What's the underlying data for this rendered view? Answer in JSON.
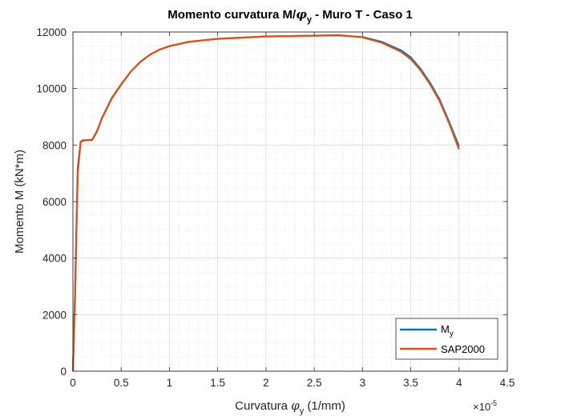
{
  "chart_data": {
    "type": "line",
    "title": {
      "prefix": "Momento curvatura M/",
      "phi": "φ",
      "sub": "y",
      "suffix": " - Muro T - Caso 1"
    },
    "xlabel": {
      "prefix": "Curvatura ",
      "phi": "φ",
      "sub": "y",
      "suffix": " (1/mm)"
    },
    "ylabel": "Momento M (kN*m)",
    "x_multiplier": {
      "base": "×10",
      "exponent": "-5"
    },
    "xlim": [
      0,
      4.5
    ],
    "ylim": [
      0,
      12000
    ],
    "x_ticks": [
      0,
      0.5,
      1,
      1.5,
      2,
      2.5,
      3,
      3.5,
      4,
      4.5
    ],
    "x_tick_labels": [
      "0",
      "0.5",
      "1",
      "1.5",
      "2",
      "2.5",
      "3",
      "3.5",
      "4",
      "4.5"
    ],
    "y_ticks": [
      0,
      2000,
      4000,
      6000,
      8000,
      10000,
      12000
    ],
    "y_tick_labels": [
      "0",
      "2000",
      "4000",
      "6000",
      "8000",
      "10000",
      "12000"
    ],
    "grid": true,
    "minor_grid": true,
    "legend_position": "bottom-right",
    "series": [
      {
        "name": "M",
        "name_sub": "y",
        "color": "#0072BD",
        "x": [
          0,
          0.02,
          0.05,
          0.08,
          0.1,
          0.15,
          0.2,
          0.25,
          0.3,
          0.4,
          0.5,
          0.6,
          0.7,
          0.8,
          0.9,
          1.0,
          1.2,
          1.5,
          2.0,
          2.5,
          2.75,
          3.0,
          3.2,
          3.4,
          3.5,
          3.6,
          3.7,
          3.8,
          3.9,
          4.0
        ],
        "y": [
          0,
          2500,
          7200,
          8100,
          8150,
          8180,
          8190,
          8500,
          8950,
          9650,
          10150,
          10600,
          10950,
          11200,
          11380,
          11500,
          11650,
          11760,
          11840,
          11870,
          11880,
          11820,
          11650,
          11350,
          11100,
          10700,
          10200,
          9600,
          8800,
          7950
        ]
      },
      {
        "name": "SAP2000",
        "color": "#D95319",
        "x": [
          0,
          0.02,
          0.05,
          0.08,
          0.1,
          0.15,
          0.2,
          0.25,
          0.3,
          0.4,
          0.5,
          0.6,
          0.7,
          0.8,
          0.9,
          1.0,
          1.2,
          1.5,
          2.0,
          2.5,
          2.75,
          3.0,
          3.2,
          3.4,
          3.5,
          3.6,
          3.7,
          3.8,
          3.9,
          4.0
        ],
        "y": [
          0,
          2300,
          7000,
          8120,
          8170,
          8170,
          8180,
          8480,
          8940,
          9630,
          10140,
          10600,
          10950,
          11200,
          11380,
          11500,
          11650,
          11760,
          11840,
          11870,
          11890,
          11810,
          11620,
          11300,
          11040,
          10650,
          10150,
          9550,
          8750,
          7850
        ]
      }
    ]
  }
}
